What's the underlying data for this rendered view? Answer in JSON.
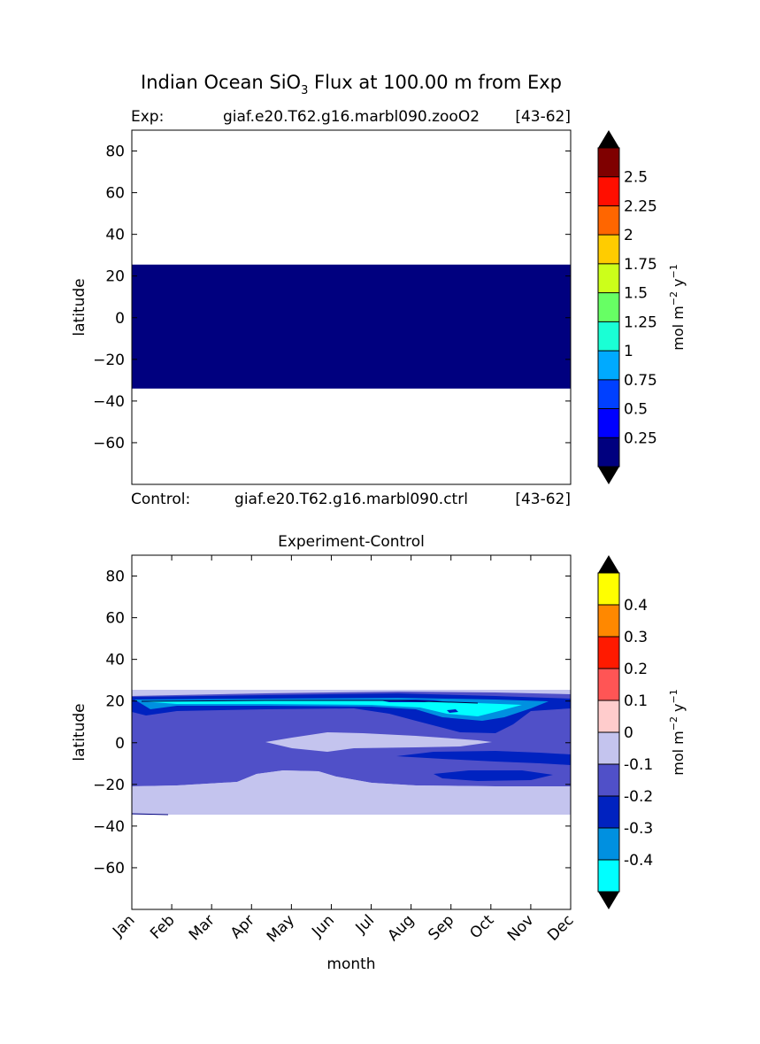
{
  "figure": {
    "title_main": "Indian Ocean SiO",
    "title_sub": "3",
    "title_rest": " Flux at 100.00 m from Exp"
  },
  "chart_data": [
    {
      "type": "heatmap",
      "panel": "experiment",
      "left_label": "Exp:",
      "case_name": "giaf.e20.T62.g16.marbl090.zooO2",
      "years": "[43-62]",
      "bottom_left_label": "Control:",
      "bottom_case_name": "giaf.e20.T62.g16.marbl090.ctrl",
      "bottom_years": "[43-62]",
      "ylabel": "latitude",
      "ylim": [
        -80,
        90
      ],
      "yticks": [
        "80",
        "60",
        "40",
        "20",
        "0",
        "−20",
        "−40",
        "−60"
      ],
      "ytick_values": [
        80,
        60,
        40,
        20,
        0,
        -20,
        -40,
        -60
      ],
      "band": {
        "lat_min": -34,
        "lat_max": 25.5,
        "color": "#00007f"
      },
      "colorbar": {
        "label_base": "mol m",
        "label_exp1": "−2",
        "label_mid": " y",
        "label_exp2": "−1",
        "colors": [
          "#00007f",
          "#0000ff",
          "#0040ff",
          "#00aaff",
          "#1affd5",
          "#67ff64",
          "#ccff1a",
          "#ffcc00",
          "#ff6600",
          "#ff0e00",
          "#7f0000"
        ],
        "ticks": [
          "0.25",
          "0.5",
          "0.75",
          "1",
          "1.25",
          "1.5",
          "1.75",
          "2",
          "2.25",
          "2.5"
        ],
        "under_color": "#000000",
        "over_color": "#000000"
      }
    },
    {
      "type": "heatmap",
      "panel": "difference",
      "title": "Experiment-Control",
      "xlabel": "month",
      "ylabel": "latitude",
      "ylim": [
        -80,
        90
      ],
      "yticks": [
        "80",
        "60",
        "40",
        "20",
        "0",
        "−20",
        "−40",
        "−60"
      ],
      "ytick_values": [
        80,
        60,
        40,
        20,
        0,
        -20,
        -40,
        -60
      ],
      "months": [
        "Jan",
        "Feb",
        "Mar",
        "Apr",
        "May",
        "Jun",
        "Jul",
        "Aug",
        "Sep",
        "Oct",
        "Nov",
        "Dec"
      ],
      "colorbar": {
        "label_base": "mol m",
        "label_exp1": "−2",
        "label_mid": " y",
        "label_exp2": "−1",
        "colors": [
          "#00ffff",
          "#0090e0",
          "#0022c0",
          "#5050c8",
          "#c4c4ee",
          "#ffcccc",
          "#ff5555",
          "#ff1a00",
          "#ff8800",
          "#ffff00"
        ],
        "ticks": [
          "-0.4",
          "-0.3",
          "-0.2",
          "-0.1",
          "0",
          "0.1",
          "0.2",
          "0.3",
          "0.4"
        ],
        "under_color": "#000000",
        "over_color": "#000000"
      }
    }
  ]
}
